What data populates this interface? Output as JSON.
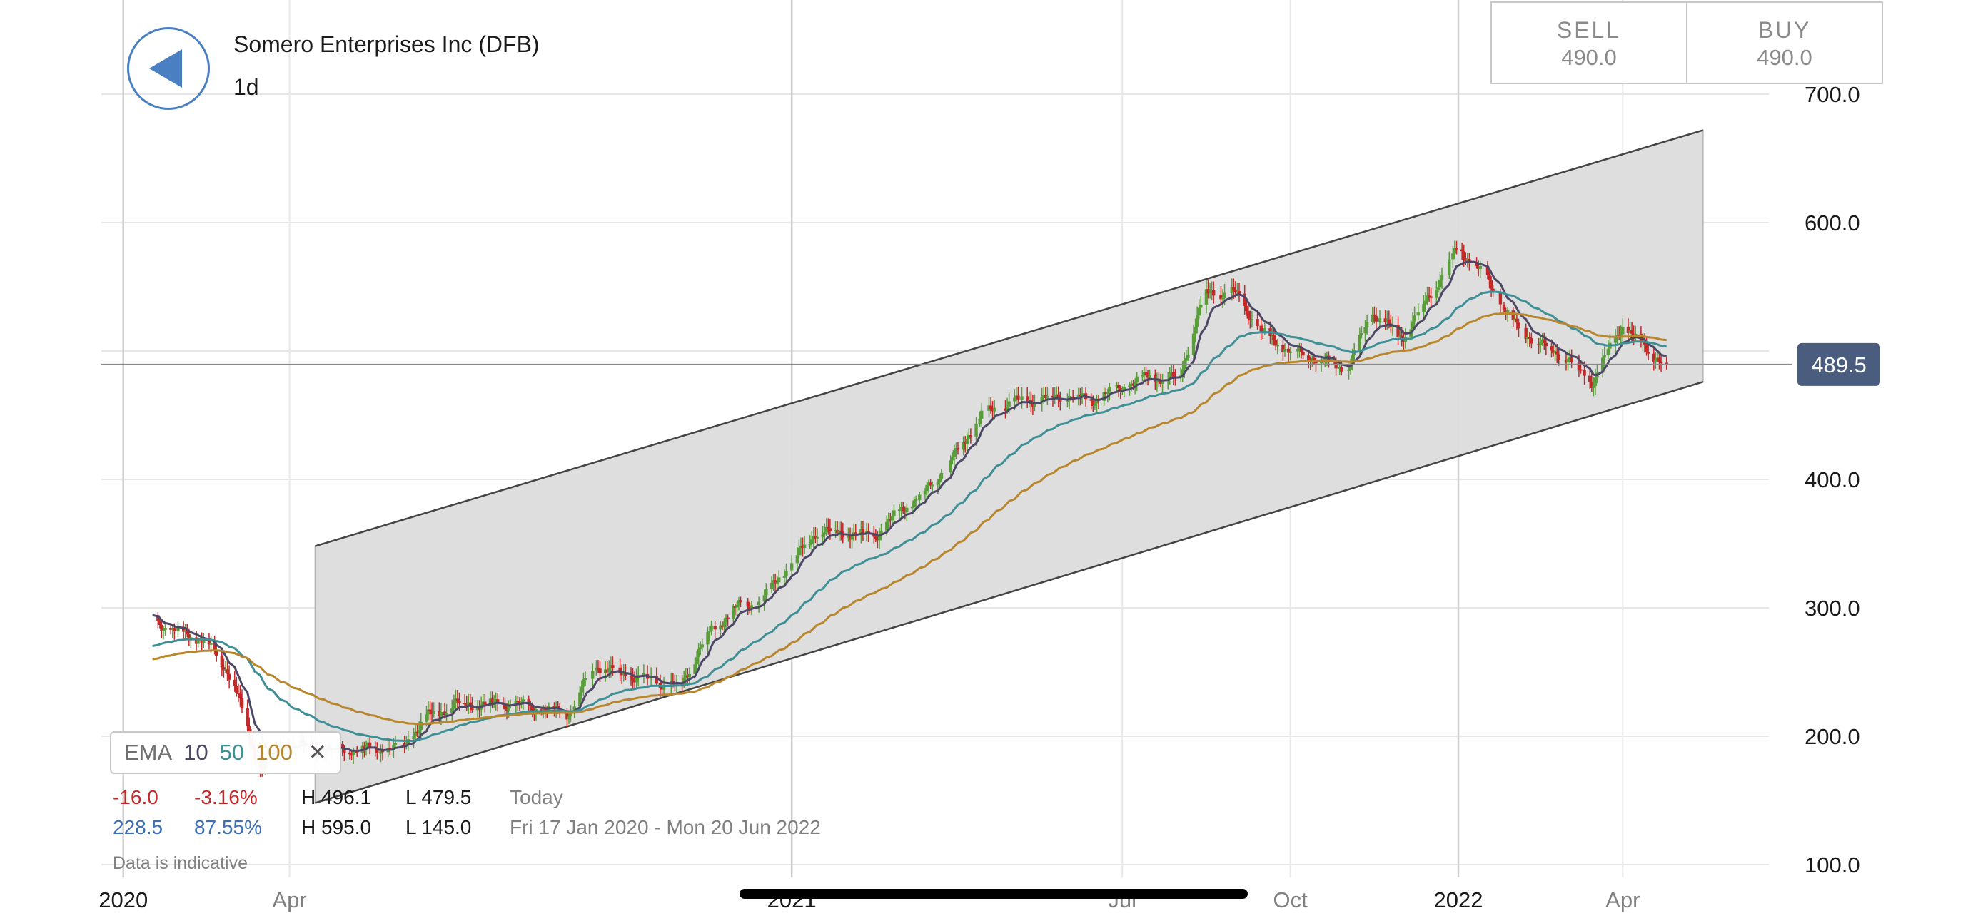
{
  "header": {
    "instrument": "Somero Enterprises Inc (DFB)",
    "interval": "1d"
  },
  "trade": {
    "sell_label": "SELL",
    "sell_price": "490.0",
    "buy_label": "BUY",
    "buy_price": "490.0"
  },
  "ema_legend": {
    "label": "EMA",
    "periods": [
      "10",
      "50",
      "100"
    ],
    "close": "✕"
  },
  "stats": {
    "today": {
      "change": "-16.0",
      "change_pct": "-3.16%",
      "high": "H 496.1",
      "low": "L 479.5",
      "label": "Today"
    },
    "range": {
      "change": "228.5",
      "change_pct": "87.55%",
      "high": "H 595.0",
      "low": "L 145.0",
      "label": "Fri 17 Jan 2020 - Mon 20 Jun 2022"
    }
  },
  "note": "Data is indicative",
  "colors": {
    "up": "#5a9e3c",
    "down": "#c42828",
    "ema10": "#4d4766",
    "ema50": "#3f8f96",
    "ema100": "#b8862c",
    "channel": "#dcdcdc",
    "price_badge": "#4a5d7e",
    "back": "#4a7fc1"
  },
  "chart_data": {
    "type": "candlestick",
    "y_axis": {
      "ticks": [
        "700.0",
        "600.0",
        "500.0",
        "400.0",
        "300.0",
        "200.0",
        "100.0"
      ],
      "ylim": [
        60,
        740
      ],
      "position": "right"
    },
    "x_axis": {
      "labels": [
        {
          "text": "2020",
          "date": "2020-01-01"
        },
        {
          "text": "Apr",
          "date": "2020-04-01"
        },
        {
          "text": "2021",
          "date": "2021-01-01"
        },
        {
          "text": "Jul",
          "date": "2021-07-01"
        },
        {
          "text": "Oct",
          "date": "2021-10-01"
        },
        {
          "text": "2022",
          "date": "2022-01-01"
        },
        {
          "text": "Apr",
          "date": "2022-04-01"
        }
      ],
      "xlim": [
        "2019-12-20",
        "2022-06-20"
      ]
    },
    "current_price": "489.5",
    "channel": {
      "start": "2020-04-15",
      "end": "2022-05-15",
      "upper": [
        348,
        672
      ],
      "lower": [
        148,
        476
      ]
    },
    "close_series": [
      [
        "2020-01-17",
        290
      ],
      [
        "2020-02-01",
        280
      ],
      [
        "2020-02-15",
        275
      ],
      [
        "2020-03-01",
        245
      ],
      [
        "2020-03-15",
        175
      ],
      [
        "2020-04-01",
        195
      ],
      [
        "2020-04-15",
        190
      ],
      [
        "2020-05-15",
        190
      ],
      [
        "2020-06-01",
        190
      ],
      [
        "2020-06-15",
        215
      ],
      [
        "2020-07-01",
        225
      ],
      [
        "2020-08-01",
        225
      ],
      [
        "2020-09-01",
        218
      ],
      [
        "2020-09-15",
        255
      ],
      [
        "2020-10-01",
        248
      ],
      [
        "2020-11-01",
        238
      ],
      [
        "2020-11-15",
        278
      ],
      [
        "2020-12-01",
        300
      ],
      [
        "2020-12-15",
        305
      ],
      [
        "2021-01-01",
        335
      ],
      [
        "2021-01-15",
        360
      ],
      [
        "2021-02-01",
        358
      ],
      [
        "2021-02-15",
        355
      ],
      [
        "2021-03-01",
        375
      ],
      [
        "2021-03-15",
        390
      ],
      [
        "2021-04-01",
        420
      ],
      [
        "2021-04-15",
        450
      ],
      [
        "2021-05-01",
        460
      ],
      [
        "2021-05-15",
        462
      ],
      [
        "2021-06-01",
        465
      ],
      [
        "2021-06-15",
        462
      ],
      [
        "2021-07-01",
        472
      ],
      [
        "2021-07-15",
        480
      ],
      [
        "2021-08-01",
        478
      ],
      [
        "2021-08-15",
        545
      ],
      [
        "2021-09-01",
        545
      ],
      [
        "2021-09-15",
        515
      ],
      [
        "2021-10-01",
        500
      ],
      [
        "2021-10-15",
        495
      ],
      [
        "2021-11-01",
        485
      ],
      [
        "2021-11-15",
        530
      ],
      [
        "2021-12-01",
        510
      ],
      [
        "2021-12-15",
        540
      ],
      [
        "2022-01-01",
        580
      ],
      [
        "2022-01-15",
        560
      ],
      [
        "2022-02-01",
        520
      ],
      [
        "2022-02-15",
        505
      ],
      [
        "2022-03-01",
        495
      ],
      [
        "2022-03-15",
        475
      ],
      [
        "2022-04-01",
        520
      ],
      [
        "2022-04-15",
        500
      ],
      [
        "2022-04-25",
        490
      ]
    ],
    "ema_periods": [
      10,
      50,
      100
    ]
  }
}
